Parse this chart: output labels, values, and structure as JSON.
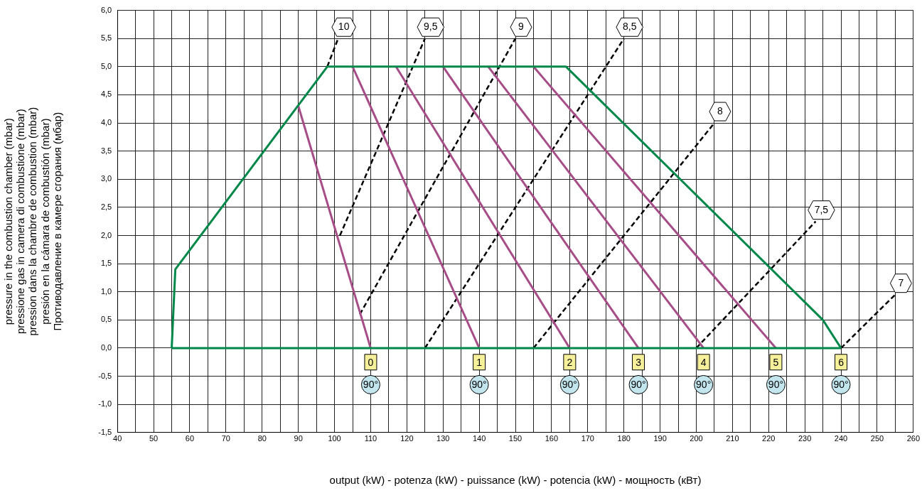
{
  "chart_data": {
    "type": "line",
    "xlabel": "output (kW) - potenza (kW) - puissance (kW) - potencia (kW) - мощность (кВт)",
    "ylabel": "pressure in the combustion chamber (mbar)\npressione gas in camera di combustione (mbar)\npression dans la chambre de combustion (mbar)\npresión en la cámara de combustión (mbar)\nПротиводавление в камере сгорания (мбар)",
    "xlim": [
      40,
      260
    ],
    "xticks": [
      40,
      {
        "value": 45,
        "label": null
      },
      50,
      {
        "value": 55,
        "label": null
      },
      60,
      {
        "value": 65,
        "label": null
      },
      70,
      {
        "value": 75,
        "label": null
      },
      80,
      {
        "value": 85,
        "label": null
      },
      90,
      {
        "value": 95,
        "label": null
      },
      100,
      {
        "value": 105,
        "label": null
      },
      110,
      {
        "value": 115,
        "label": null
      },
      120,
      {
        "value": 125,
        "label": null
      },
      130,
      {
        "value": 135,
        "label": null
      },
      140,
      {
        "value": 145,
        "label": null
      },
      150,
      {
        "value": 155,
        "label": null
      },
      160,
      {
        "value": 165,
        "label": null
      },
      170,
      {
        "value": 175,
        "label": null
      },
      180,
      {
        "value": 185,
        "label": null
      },
      190,
      {
        "value": 195,
        "label": null
      },
      200,
      {
        "value": 205,
        "label": null
      },
      210,
      {
        "value": 215,
        "label": null
      },
      220,
      {
        "value": 225,
        "label": null
      },
      230,
      {
        "value": 235,
        "label": null
      },
      240,
      {
        "value": 245,
        "label": null
      },
      250,
      {
        "value": 255,
        "label": null
      },
      260
    ],
    "ylim": [
      -1.5,
      6
    ],
    "yticks": [
      {
        "value": -1.5,
        "label": "-1,5"
      },
      {
        "value": -1,
        "label": "-1,0"
      },
      {
        "value": -0.5,
        "label": "-0,5"
      },
      {
        "value": 0,
        "label": "0,0"
      },
      {
        "value": 0.5,
        "label": "0,5"
      },
      {
        "value": 1,
        "label": "1,0"
      },
      {
        "value": 1.5,
        "label": "1,5"
      },
      {
        "value": 2,
        "label": "2,0"
      },
      {
        "value": 2.5,
        "label": "2,5"
      },
      {
        "value": 3,
        "label": "3,0"
      },
      {
        "value": 3.5,
        "label": "3,5"
      },
      {
        "value": 4,
        "label": "4,0"
      },
      {
        "value": 4.5,
        "label": "4,5"
      },
      {
        "value": 5,
        "label": "5,0"
      },
      {
        "value": 5.5,
        "label": "5,5"
      },
      {
        "value": 6,
        "label": "6,0"
      }
    ],
    "grid": true,
    "marker": "none",
    "series": [
      {
        "color": "#00884a",
        "line_style": "solid",
        "x": [
          55,
          56,
          98,
          164,
          235,
          240
        ],
        "values": [
          0,
          1.4,
          5,
          5,
          0.5,
          0
        ]
      },
      {
        "color": "#00884a",
        "line_style": "solid",
        "x": [
          55,
          240
        ],
        "values": [
          0,
          0
        ]
      },
      {
        "color": "#a64d87",
        "line_style": "solid",
        "x": [
          90,
          110
        ],
        "values": [
          4.3,
          0
        ]
      },
      {
        "color": "#a64d87",
        "line_style": "solid",
        "x": [
          105,
          140
        ],
        "values": [
          5,
          0
        ]
      },
      {
        "color": "#a64d87",
        "line_style": "solid",
        "x": [
          117,
          165
        ],
        "values": [
          5,
          0
        ]
      },
      {
        "color": "#a64d87",
        "line_style": "solid",
        "x": [
          130,
          184
        ],
        "values": [
          5,
          0
        ]
      },
      {
        "color": "#a64d87",
        "line_style": "solid",
        "x": [
          142.5,
          202
        ],
        "values": [
          5,
          0
        ]
      },
      {
        "color": "#a64d87",
        "line_style": "solid",
        "x": [
          155,
          222
        ],
        "values": [
          5,
          0
        ]
      },
      {
        "name": "10",
        "color": "#000000",
        "line_style": "dashed",
        "x": [
          98,
          101
        ],
        "values": [
          5,
          5.5
        ]
      },
      {
        "name": "9,5",
        "color": "#000000",
        "line_style": "dashed",
        "x": [
          101.5,
          125
        ],
        "values": [
          2,
          5.5
        ]
      },
      {
        "name": "9",
        "color": "#000000",
        "line_style": "dashed",
        "x": [
          107,
          150
        ],
        "values": [
          0.6,
          5.5
        ]
      },
      {
        "name": "8,5",
        "color": "#000000",
        "line_style": "dashed",
        "x": [
          125,
          180
        ],
        "values": [
          0,
          5.5
        ]
      },
      {
        "name": "8",
        "color": "#000000",
        "line_style": "dashed",
        "x": [
          155,
          205
        ],
        "values": [
          0,
          4
        ]
      },
      {
        "name": "7,5",
        "color": "#000000",
        "line_style": "dashed",
        "x": [
          200,
          233
        ],
        "values": [
          0,
          2.25
        ]
      },
      {
        "name": "7",
        "color": "#000000",
        "line_style": "dashed",
        "x": [
          240,
          255
        ],
        "values": [
          0,
          0.95
        ]
      }
    ],
    "annotations": [
      {
        "text": "0",
        "x": 110,
        "y": -0.25
      },
      {
        "text": "1",
        "x": 140,
        "y": -0.25
      },
      {
        "text": "2",
        "x": 165,
        "y": -0.25
      },
      {
        "text": "3",
        "x": 184,
        "y": -0.25
      },
      {
        "text": "4",
        "x": 202,
        "y": -0.25
      },
      {
        "text": "5",
        "x": 222,
        "y": -0.25
      },
      {
        "text": "6",
        "x": 240,
        "y": -0.25
      },
      {
        "text": "90°",
        "x": 110,
        "y": -0.65
      },
      {
        "text": "90°",
        "x": 140,
        "y": -0.65
      },
      {
        "text": "90°",
        "x": 165,
        "y": -0.65
      },
      {
        "text": "90°",
        "x": 184,
        "y": -0.65
      },
      {
        "text": "90°",
        "x": 202,
        "y": -0.65
      },
      {
        "text": "90°",
        "x": 222,
        "y": -0.65
      },
      {
        "text": "90°",
        "x": 240,
        "y": -0.65
      }
    ]
  }
}
